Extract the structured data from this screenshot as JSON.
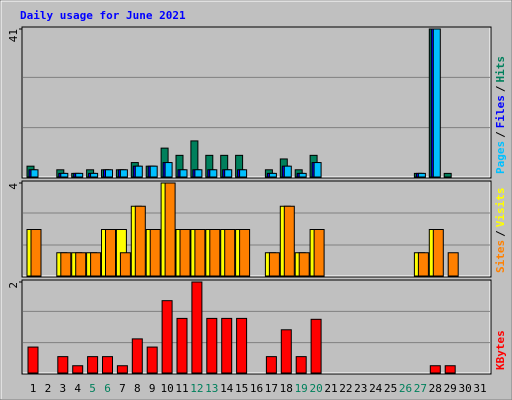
{
  "chart_data": {
    "type": "bar",
    "title": "Daily usage for June 2021",
    "title_color": "#0000ff",
    "categories": [
      "1",
      "2",
      "3",
      "4",
      "5",
      "6",
      "7",
      "8",
      "9",
      "10",
      "11",
      "12",
      "13",
      "14",
      "15",
      "16",
      "17",
      "18",
      "19",
      "20",
      "21",
      "22",
      "23",
      "24",
      "25",
      "26",
      "27",
      "28",
      "29",
      "30",
      "31"
    ],
    "category_colors": [
      "#000000",
      "#000000",
      "#000000",
      "#000000",
      "#00805c",
      "#00805c",
      "#000000",
      "#000000",
      "#000000",
      "#000000",
      "#000000",
      "#00805c",
      "#00805c",
      "#000000",
      "#000000",
      "#000000",
      "#000000",
      "#000000",
      "#00805c",
      "#00805c",
      "#000000",
      "#000000",
      "#000000",
      "#000000",
      "#000000",
      "#00805c",
      "#00805c",
      "#000000",
      "#000000",
      "#000000",
      "#000000"
    ],
    "legend_separator": "/",
    "grid_divisions": 3,
    "panels": [
      {
        "ylim": [
          0,
          41
        ],
        "yticks": [
          41
        ],
        "series": [
          {
            "name": "Hits",
            "color": "#00805c",
            "values": [
              3,
              0,
              2,
              1,
              2,
              2,
              2,
              4,
              3,
              8,
              6,
              10,
              6,
              6,
              6,
              0,
              2,
              5,
              2,
              6,
              0,
              0,
              0,
              0,
              0,
              0,
              1,
              41,
              1,
              0,
              0
            ]
          },
          {
            "name": "Files",
            "color": "#0000ff",
            "values": [
              2,
              0,
              1,
              1,
              1,
              2,
              2,
              3,
              3,
              4,
              2,
              2,
              2,
              2,
              2,
              0,
              1,
              3,
              1,
              4,
              0,
              0,
              0,
              0,
              0,
              0,
              1,
              41,
              0,
              0,
              0
            ]
          },
          {
            "name": "Pages",
            "color": "#00c0ff",
            "values": [
              2,
              0,
              1,
              1,
              1,
              2,
              2,
              3,
              3,
              4,
              2,
              2,
              2,
              2,
              2,
              0,
              1,
              3,
              1,
              4,
              0,
              0,
              0,
              0,
              0,
              0,
              1,
              41,
              0,
              0,
              0
            ]
          }
        ]
      },
      {
        "ylim": [
          0,
          4
        ],
        "yticks": [
          4
        ],
        "series": [
          {
            "name": "Visits",
            "color": "#ffff00",
            "values": [
              2,
              0,
              1,
              1,
              1,
              2,
              2,
              3,
              2,
              4,
              2,
              2,
              2,
              2,
              2,
              0,
              1,
              3,
              1,
              2,
              0,
              0,
              0,
              0,
              0,
              0,
              1,
              2,
              0,
              0,
              0
            ]
          },
          {
            "name": "Sites",
            "color": "#ff8000",
            "values": [
              2,
              0,
              1,
              1,
              1,
              2,
              1,
              3,
              2,
              4,
              2,
              2,
              2,
              2,
              2,
              0,
              1,
              3,
              1,
              2,
              0,
              0,
              0,
              0,
              0,
              0,
              1,
              2,
              1,
              0,
              0
            ]
          }
        ]
      },
      {
        "ylim": [
          0,
          2
        ],
        "yticks": [
          2
        ],
        "series": [
          {
            "name": "KBytes",
            "color": "#ff0000",
            "values": [
              0.57,
              0,
              0.36,
              0.16,
              0.36,
              0.36,
              0.16,
              0.75,
              0.57,
              1.59,
              1.2,
              2,
              1.2,
              1.2,
              1.2,
              0,
              0.36,
              0.95,
              0.36,
              1.18,
              0,
              0,
              0,
              0,
              0,
              0,
              0,
              0.16,
              0.16,
              0,
              0
            ]
          }
        ]
      }
    ]
  }
}
